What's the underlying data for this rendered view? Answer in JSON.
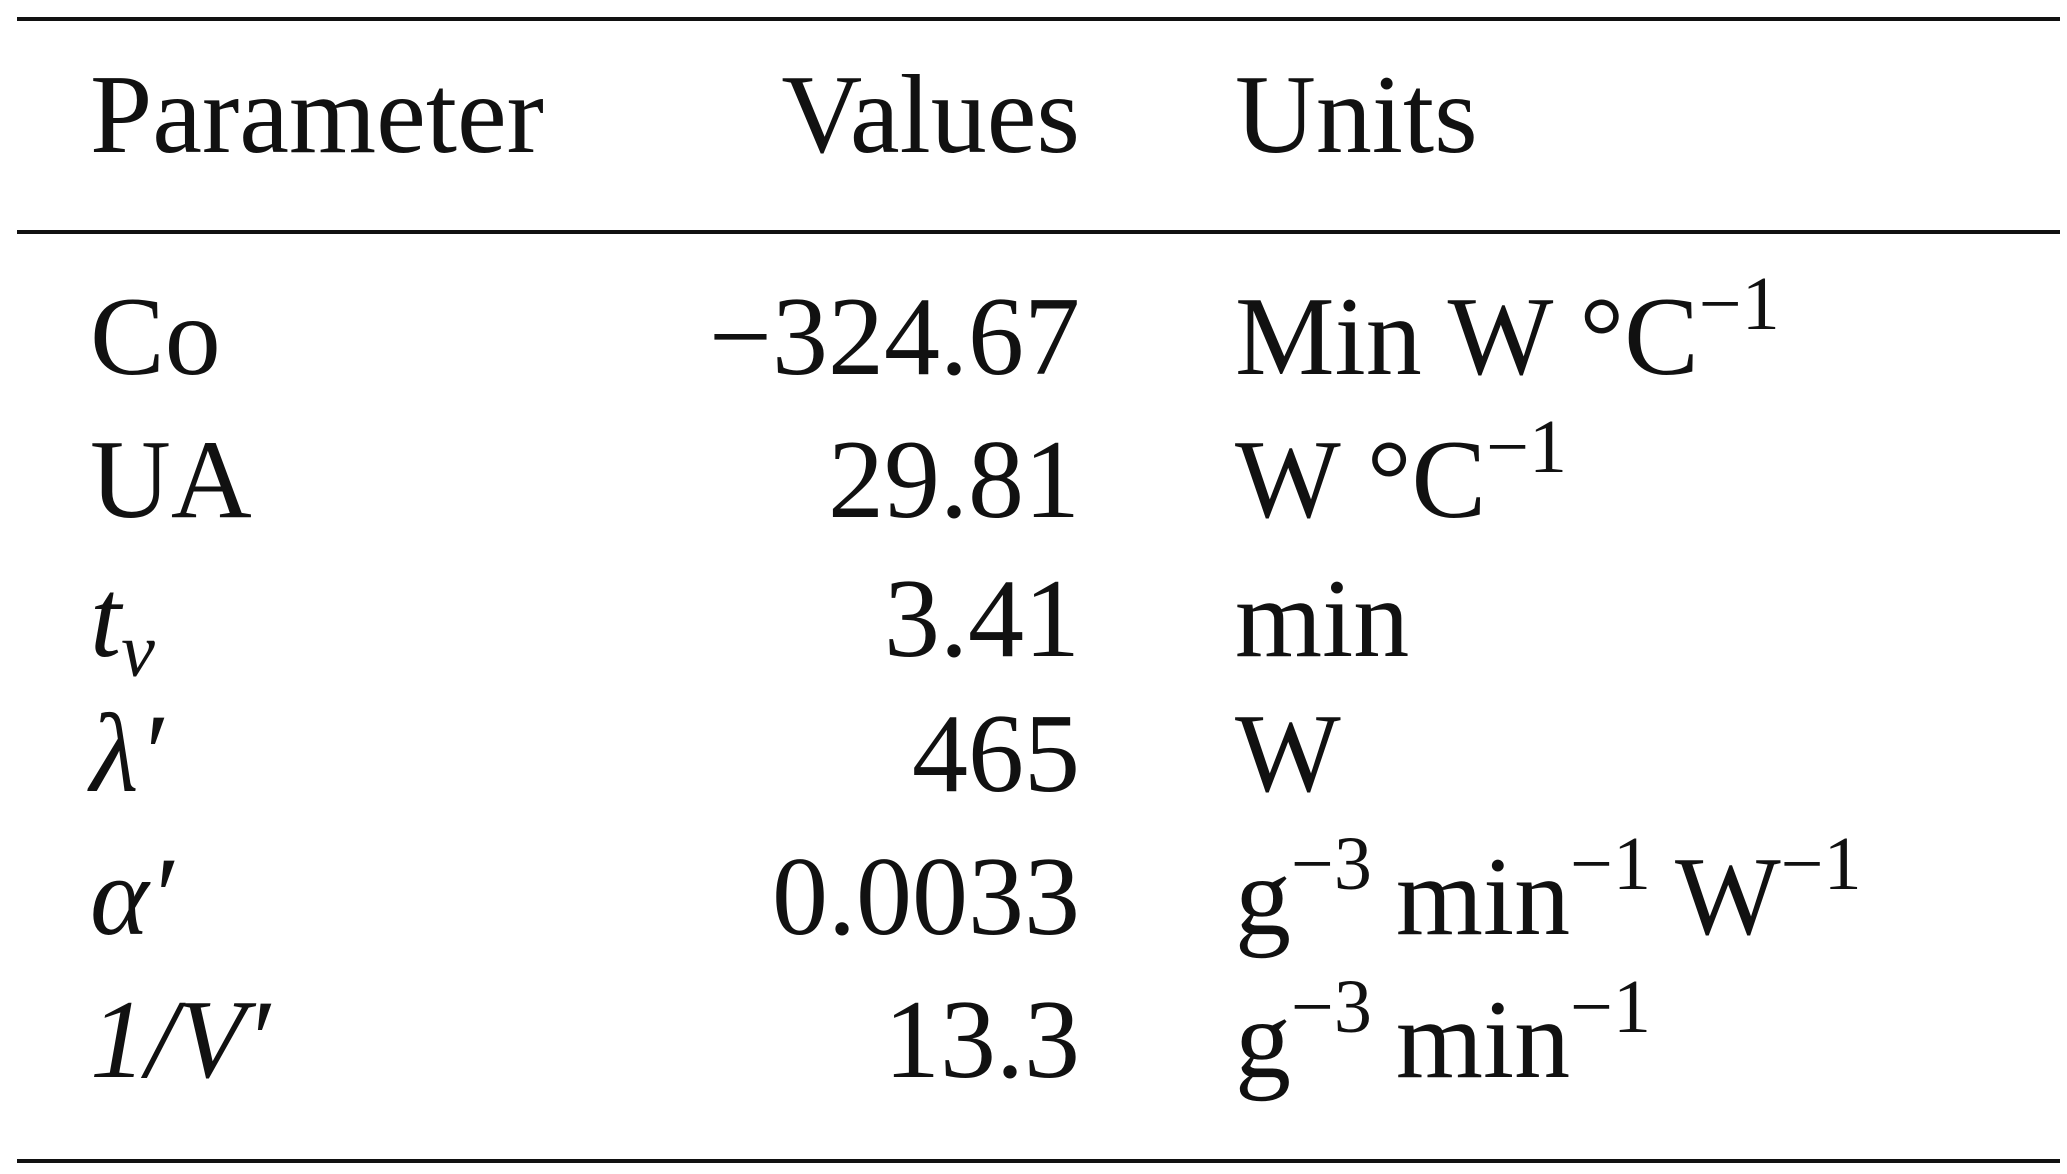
{
  "table": {
    "header": [
      "Parameter",
      "Values",
      "Units"
    ],
    "rows": [
      [
        "Co",
        "−324.67",
        [
          {
            "text": "Min W °C",
            "sup": "−1"
          }
        ]
      ],
      [
        "UA",
        "29.81",
        [
          {
            "text": "W °C",
            "sup": "−1"
          }
        ]
      ],
      [
        {
          "text": "t",
          "sub": "v"
        },
        "3.41",
        "min"
      ],
      [
        "λ′",
        "465",
        "W"
      ],
      [
        "α′",
        "0.0033",
        [
          {
            "text": "g",
            "sup": "−3"
          },
          {
            "text": "min",
            "sup": "−1"
          },
          {
            "text": "W",
            "sup": "−1"
          }
        ]
      ],
      [
        "1/V′",
        "13.3",
        [
          {
            "text": "g",
            "sup": "−3"
          },
          {
            "text": "min",
            "sup": "−1"
          }
        ]
      ]
    ]
  }
}
